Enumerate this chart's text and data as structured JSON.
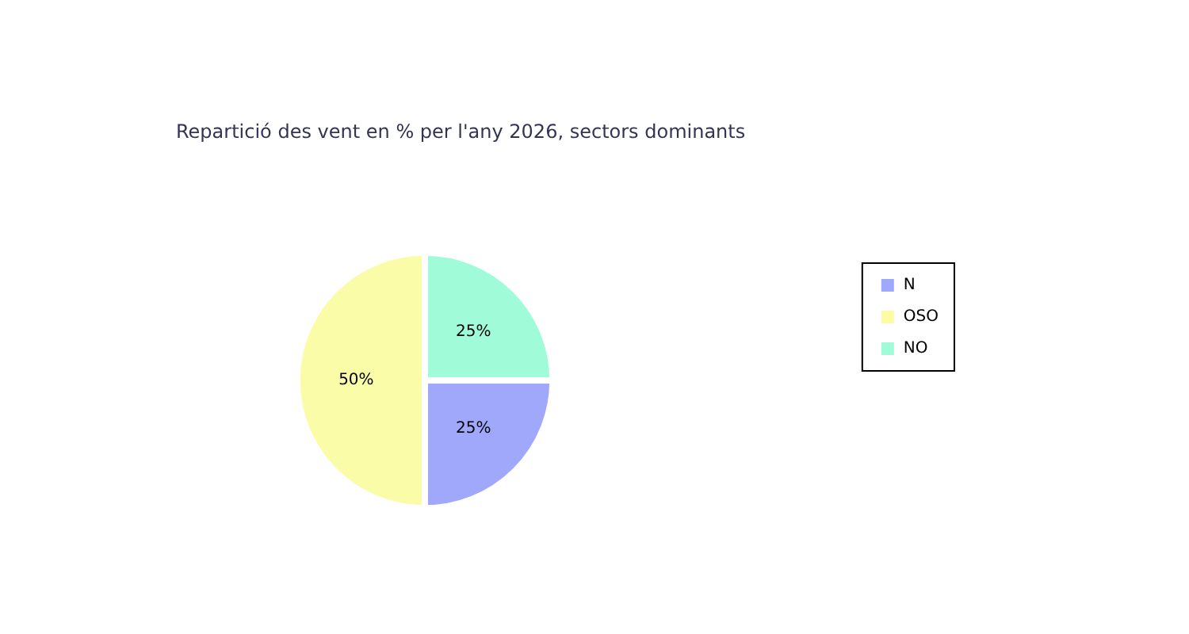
{
  "chart_data": {
    "type": "pie",
    "title": "Repartició des vent en % per l'any 2026, sectors dominants",
    "categories": [
      "N",
      "OSO",
      "NO"
    ],
    "values": [
      25,
      50,
      25
    ],
    "colors": [
      "#a0a8fc",
      "#fafca8",
      "#a0fcd8"
    ],
    "value_labels": [
      "25%",
      "50%",
      "25%"
    ],
    "legend": "right"
  }
}
